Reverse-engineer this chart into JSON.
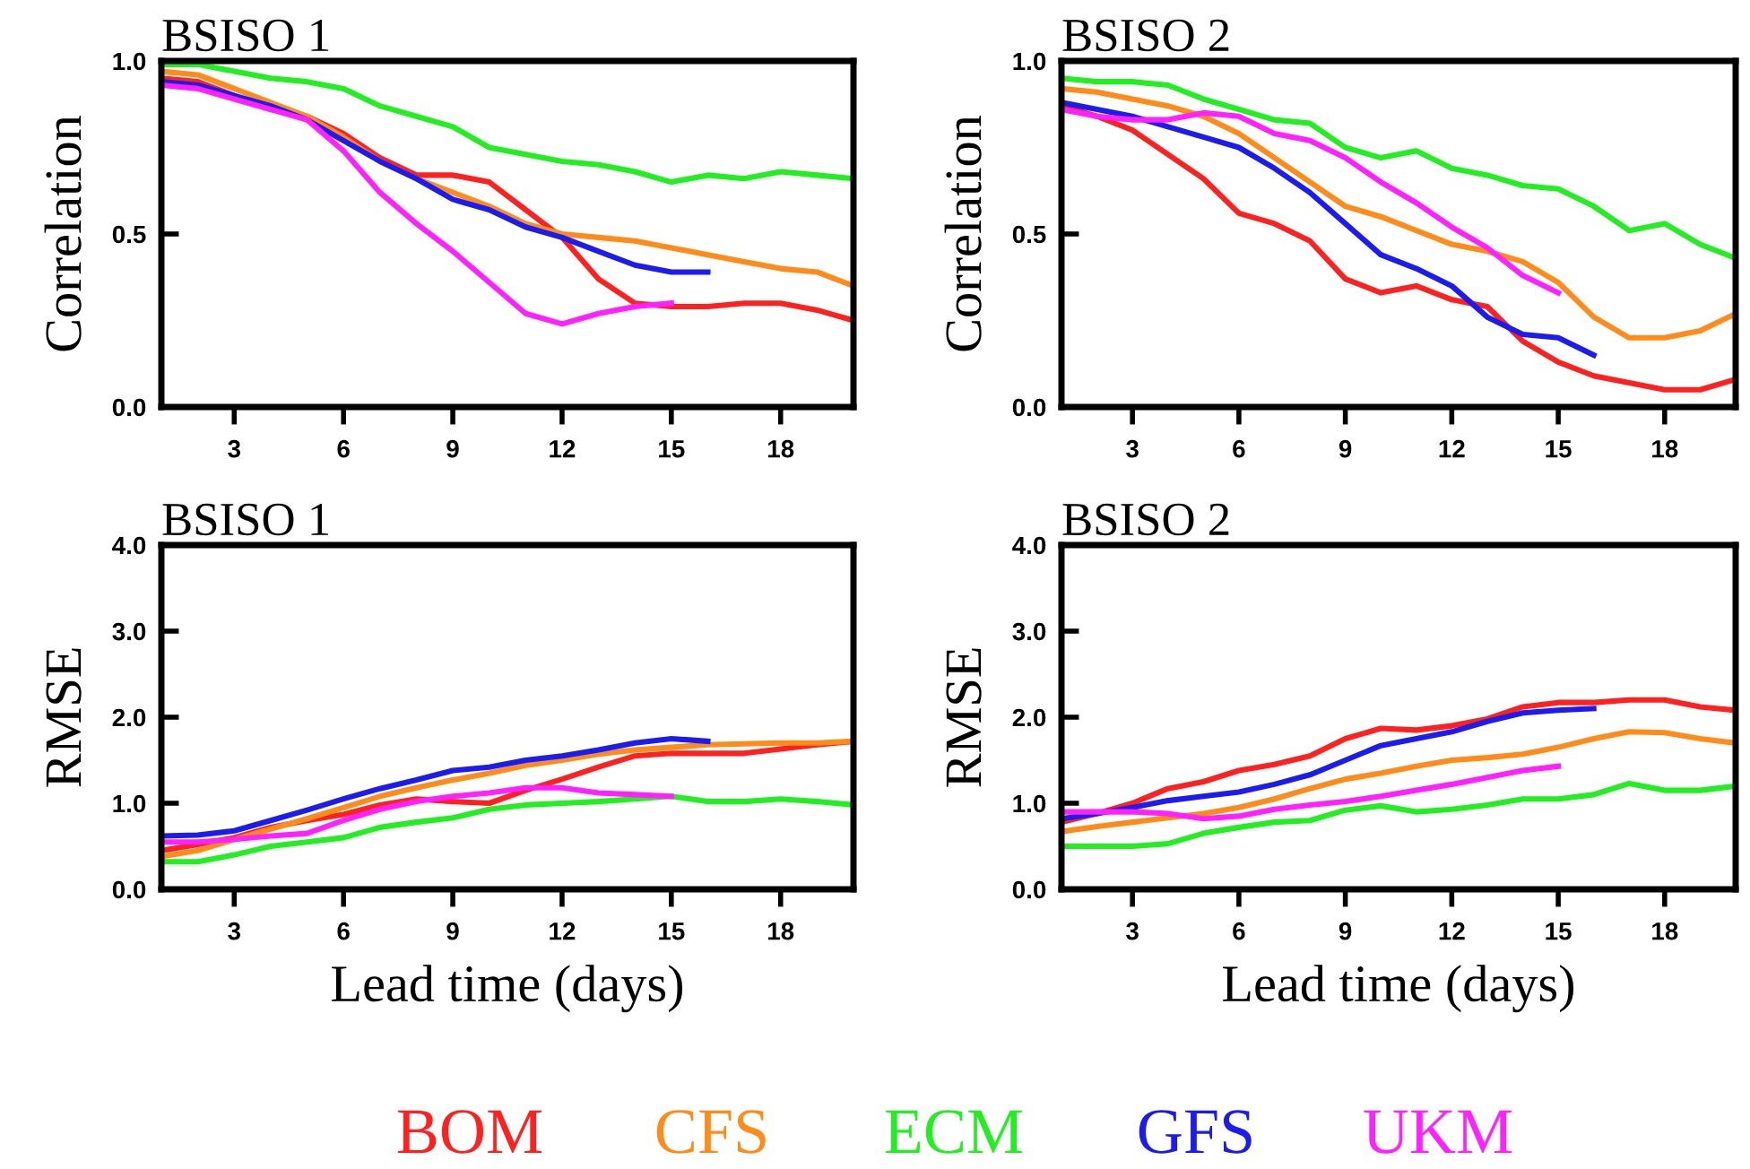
{
  "chart_data": [
    {
      "type": "line",
      "title": "BSISO 1",
      "ylabel": "Correlation",
      "x": [
        1,
        2,
        3,
        4,
        5,
        6,
        7,
        8,
        9,
        10,
        11,
        12,
        13,
        14,
        15,
        16,
        17,
        18,
        19,
        20
      ],
      "xlim": [
        1,
        20
      ],
      "xticks": [
        3,
        6,
        9,
        12,
        15,
        18
      ],
      "ylim": [
        0,
        1
      ],
      "yticks": [
        {
          "value": 0,
          "label": "0.0"
        },
        {
          "value": 0.5,
          "label": "0.5"
        },
        {
          "value": 1,
          "label": "1.0"
        }
      ],
      "grid": false,
      "marker": "none",
      "line_style": "solid",
      "series": [
        {
          "color": "#ff2020",
          "values": [
            0.95,
            0.94,
            0.9,
            0.86,
            0.84,
            0.79,
            0.72,
            0.67,
            0.67,
            0.65,
            0.57,
            0.49,
            0.37,
            0.3,
            0.29,
            0.29,
            0.3,
            0.3,
            0.28,
            0.25
          ]
        },
        {
          "color": "#ff8c1a",
          "values": [
            0.97,
            0.96,
            0.92,
            0.88,
            0.84,
            0.78,
            0.71,
            0.66,
            0.62,
            0.58,
            0.53,
            0.5,
            0.49,
            0.48,
            0.46,
            0.44,
            0.42,
            0.4,
            0.39,
            0.35
          ]
        },
        {
          "color": "#22ee22",
          "values": [
            0.99,
            0.99,
            0.97,
            0.95,
            0.94,
            0.92,
            0.87,
            0.84,
            0.81,
            0.75,
            0.73,
            0.71,
            0.7,
            0.68,
            0.65,
            0.67,
            0.66,
            0.68,
            0.67,
            0.66
          ]
        },
        {
          "color": "#1c1cf0",
          "values": [
            0.94,
            0.93,
            0.9,
            0.87,
            0.83,
            0.77,
            0.71,
            0.66,
            0.6,
            0.57,
            0.52,
            0.49,
            0.45,
            0.41,
            0.39,
            0.39,
            null,
            null,
            null,
            null
          ]
        },
        {
          "color": "#ff22ff",
          "values": [
            0.93,
            0.92,
            0.89,
            0.86,
            0.83,
            0.74,
            0.62,
            0.53,
            0.45,
            0.36,
            0.27,
            0.24,
            0.27,
            0.29,
            0.3,
            null,
            null,
            null,
            null,
            null
          ]
        }
      ]
    },
    {
      "type": "line",
      "title": "BSISO 2",
      "ylabel": "Correlation",
      "x": [
        1,
        2,
        3,
        4,
        5,
        6,
        7,
        8,
        9,
        10,
        11,
        12,
        13,
        14,
        15,
        16,
        17,
        18,
        19,
        20
      ],
      "xlim": [
        1,
        20
      ],
      "xticks": [
        3,
        6,
        9,
        12,
        15,
        18
      ],
      "ylim": [
        0,
        1
      ],
      "yticks": [
        {
          "value": 0,
          "label": "0.0"
        },
        {
          "value": 0.5,
          "label": "0.5"
        },
        {
          "value": 1,
          "label": "1.0"
        }
      ],
      "grid": false,
      "marker": "none",
      "line_style": "solid",
      "series": [
        {
          "color": "#ff2020",
          "values": [
            0.87,
            0.84,
            0.8,
            0.73,
            0.66,
            0.56,
            0.53,
            0.48,
            0.37,
            0.33,
            0.35,
            0.31,
            0.29,
            0.19,
            0.13,
            0.09,
            0.07,
            0.05,
            0.05,
            0.08
          ]
        },
        {
          "color": "#ff8c1a",
          "values": [
            0.92,
            0.91,
            0.89,
            0.87,
            0.84,
            0.79,
            0.72,
            0.65,
            0.58,
            0.55,
            0.51,
            0.47,
            0.45,
            0.42,
            0.36,
            0.26,
            0.2,
            0.2,
            0.22,
            0.27
          ]
        },
        {
          "color": "#22ee22",
          "values": [
            0.95,
            0.94,
            0.94,
            0.93,
            0.89,
            0.86,
            0.83,
            0.82,
            0.75,
            0.72,
            0.74,
            0.69,
            0.67,
            0.64,
            0.63,
            0.58,
            0.51,
            0.53,
            0.47,
            0.43
          ]
        },
        {
          "color": "#1c1cf0",
          "values": [
            0.88,
            0.86,
            0.84,
            0.81,
            0.78,
            0.75,
            0.69,
            0.62,
            0.53,
            0.44,
            0.4,
            0.35,
            0.26,
            0.21,
            0.2,
            0.15,
            null,
            null,
            null,
            null
          ]
        },
        {
          "color": "#ff22ff",
          "values": [
            0.86,
            0.84,
            0.83,
            0.83,
            0.85,
            0.84,
            0.79,
            0.77,
            0.72,
            0.65,
            0.59,
            0.52,
            0.46,
            0.38,
            0.33,
            null,
            null,
            null,
            null,
            null
          ]
        }
      ]
    },
    {
      "type": "line",
      "title": "BSISO 1",
      "ylabel": "RMSE",
      "xlabel": "Lead time (days)",
      "x": [
        1,
        2,
        3,
        4,
        5,
        6,
        7,
        8,
        9,
        10,
        11,
        12,
        13,
        14,
        15,
        16,
        17,
        18,
        19,
        20
      ],
      "xlim": [
        1,
        20
      ],
      "xticks": [
        3,
        6,
        9,
        12,
        15,
        18
      ],
      "ylim": [
        0,
        4
      ],
      "yticks": [
        {
          "value": 0,
          "label": "0.0"
        },
        {
          "value": 1,
          "label": "1.0"
        },
        {
          "value": 2,
          "label": "2.0"
        },
        {
          "value": 3,
          "label": "3.0"
        },
        {
          "value": 4,
          "label": "4.0"
        }
      ],
      "grid": false,
      "marker": "none",
      "line_style": "solid",
      "series": [
        {
          "color": "#ff2020",
          "values": [
            0.45,
            0.52,
            0.6,
            0.72,
            0.8,
            0.87,
            0.98,
            1.05,
            1.02,
            1.0,
            1.15,
            1.28,
            1.42,
            1.55,
            1.58,
            1.58,
            1.58,
            1.63,
            1.68,
            1.72
          ]
        },
        {
          "color": "#ff8c1a",
          "values": [
            0.38,
            0.45,
            0.58,
            0.7,
            0.82,
            0.95,
            1.08,
            1.18,
            1.27,
            1.35,
            1.44,
            1.5,
            1.57,
            1.62,
            1.65,
            1.68,
            1.69,
            1.7,
            1.7,
            1.72
          ]
        },
        {
          "color": "#22ee22",
          "values": [
            0.32,
            0.32,
            0.4,
            0.5,
            0.55,
            0.6,
            0.72,
            0.78,
            0.83,
            0.93,
            0.98,
            1.0,
            1.02,
            1.05,
            1.08,
            1.02,
            1.02,
            1.05,
            1.02,
            0.98
          ]
        },
        {
          "color": "#1c1cf0",
          "values": [
            0.62,
            0.63,
            0.68,
            0.8,
            0.92,
            1.05,
            1.17,
            1.27,
            1.38,
            1.42,
            1.5,
            1.55,
            1.62,
            1.7,
            1.75,
            1.72,
            null,
            null,
            null,
            null
          ]
        },
        {
          "color": "#ff22ff",
          "values": [
            0.55,
            0.55,
            0.58,
            0.62,
            0.65,
            0.8,
            0.93,
            1.02,
            1.08,
            1.12,
            1.18,
            1.18,
            1.12,
            1.1,
            1.08,
            null,
            null,
            null,
            null,
            null
          ]
        }
      ]
    },
    {
      "type": "line",
      "title": "BSISO 2",
      "ylabel": "RMSE",
      "xlabel": "Lead time (days)",
      "x": [
        1,
        2,
        3,
        4,
        5,
        6,
        7,
        8,
        9,
        10,
        11,
        12,
        13,
        14,
        15,
        16,
        17,
        18,
        19,
        20
      ],
      "xlim": [
        1,
        20
      ],
      "xticks": [
        3,
        6,
        9,
        12,
        15,
        18
      ],
      "ylim": [
        0,
        4
      ],
      "yticks": [
        {
          "value": 0,
          "label": "0.0"
        },
        {
          "value": 1,
          "label": "1.0"
        },
        {
          "value": 2,
          "label": "2.0"
        },
        {
          "value": 3,
          "label": "3.0"
        },
        {
          "value": 4,
          "label": "4.0"
        }
      ],
      "grid": false,
      "marker": "none",
      "line_style": "solid",
      "series": [
        {
          "name": "BOM",
          "color": "#ff2020",
          "values": [
            0.78,
            0.88,
            1.0,
            1.17,
            1.25,
            1.38,
            1.45,
            1.55,
            1.75,
            1.87,
            1.85,
            1.9,
            1.98,
            2.12,
            2.17,
            2.17,
            2.2,
            2.2,
            2.12,
            2.08
          ]
        },
        {
          "name": "CFS",
          "color": "#ff8c1a",
          "values": [
            0.67,
            0.73,
            0.78,
            0.83,
            0.88,
            0.95,
            1.05,
            1.17,
            1.28,
            1.35,
            1.43,
            1.5,
            1.53,
            1.57,
            1.65,
            1.75,
            1.83,
            1.82,
            1.75,
            1.7
          ]
        },
        {
          "name": "ECM",
          "color": "#22ee22",
          "values": [
            0.5,
            0.5,
            0.5,
            0.53,
            0.65,
            0.72,
            0.78,
            0.8,
            0.92,
            0.97,
            0.9,
            0.93,
            0.98,
            1.05,
            1.05,
            1.1,
            1.23,
            1.15,
            1.15,
            1.2
          ]
        },
        {
          "name": "GFS",
          "color": "#1c1cf0",
          "values": [
            0.82,
            0.88,
            0.95,
            1.03,
            1.08,
            1.13,
            1.22,
            1.33,
            1.5,
            1.67,
            1.75,
            1.83,
            1.95,
            2.05,
            2.08,
            2.1,
            null,
            null,
            null,
            null
          ]
        },
        {
          "name": "UKM",
          "color": "#ff22ff",
          "values": [
            0.9,
            0.9,
            0.9,
            0.88,
            0.82,
            0.85,
            0.93,
            0.98,
            1.02,
            1.08,
            1.15,
            1.22,
            1.3,
            1.38,
            1.43,
            null,
            null,
            null,
            null,
            null
          ]
        }
      ]
    }
  ]
}
